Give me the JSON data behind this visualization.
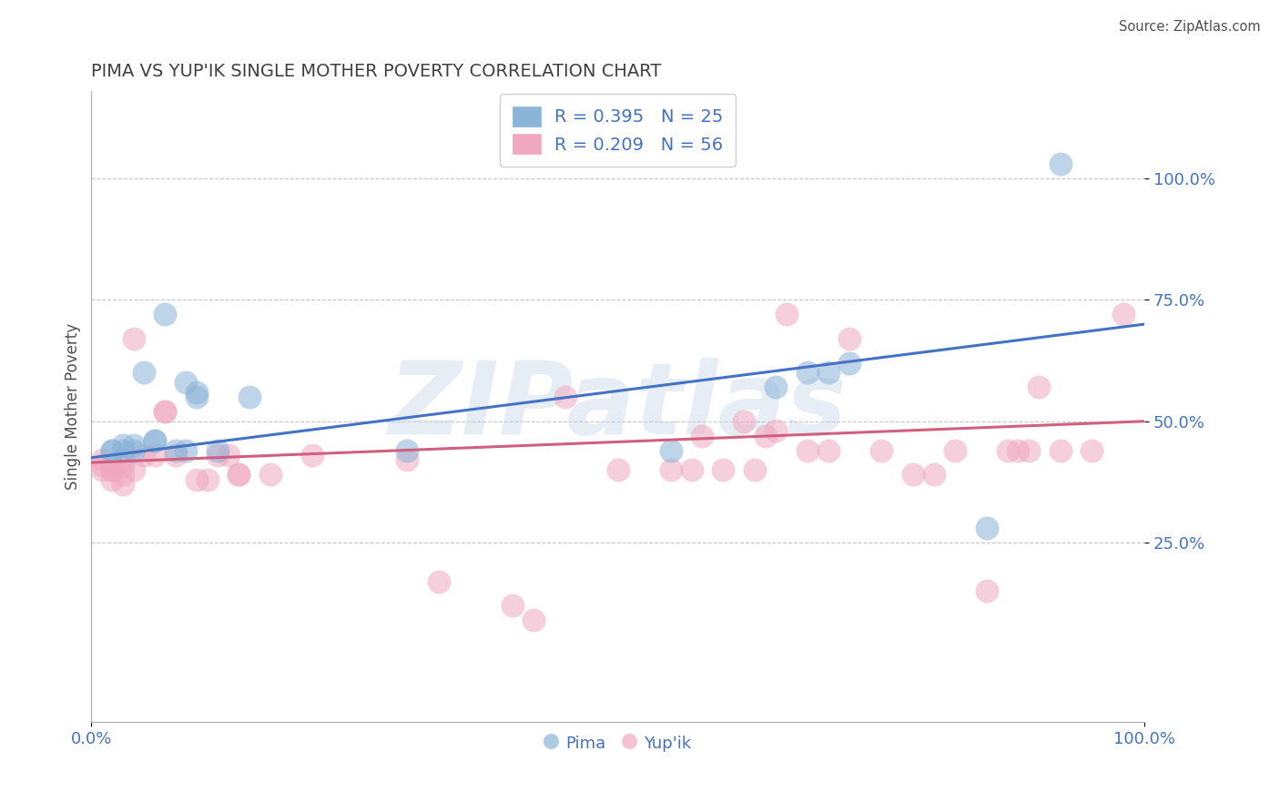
{
  "title": "PIMA VS YUP'IK SINGLE MOTHER POVERTY CORRELATION CHART",
  "source": "Source: ZipAtlas.com",
  "ylabel": "Single Mother Poverty",
  "xlim": [
    0.0,
    1.0
  ],
  "ylim": [
    -0.12,
    1.18
  ],
  "legend_entries": [
    {
      "label": "R = 0.395   N = 25",
      "color": "#a8c8e8"
    },
    {
      "label": "R = 0.209   N = 56",
      "color": "#f4a8c0"
    }
  ],
  "blue_color": "#4472c4",
  "pink_color": "#d06080",
  "blue_marker_color": "#8ab4d8",
  "pink_marker_color": "#f0a8c0",
  "watermark": "ZIPatlas",
  "watermark_color": "#c8d8e8",
  "title_color": "#404040",
  "axis_color": "#4472c4",
  "pima_points": [
    [
      0.02,
      0.44
    ],
    [
      0.02,
      0.44
    ],
    [
      0.03,
      0.44
    ],
    [
      0.03,
      0.45
    ],
    [
      0.04,
      0.45
    ],
    [
      0.04,
      0.44
    ],
    [
      0.05,
      0.6
    ],
    [
      0.06,
      0.46
    ],
    [
      0.06,
      0.46
    ],
    [
      0.07,
      0.72
    ],
    [
      0.08,
      0.44
    ],
    [
      0.09,
      0.44
    ],
    [
      0.09,
      0.58
    ],
    [
      0.1,
      0.55
    ],
    [
      0.1,
      0.56
    ],
    [
      0.12,
      0.44
    ],
    [
      0.15,
      0.55
    ],
    [
      0.3,
      0.44
    ],
    [
      0.55,
      0.44
    ],
    [
      0.65,
      0.57
    ],
    [
      0.68,
      0.6
    ],
    [
      0.7,
      0.6
    ],
    [
      0.72,
      0.62
    ],
    [
      0.85,
      0.28
    ],
    [
      0.92,
      1.03
    ]
  ],
  "yupik_points": [
    [
      0.01,
      0.4
    ],
    [
      0.01,
      0.41
    ],
    [
      0.01,
      0.42
    ],
    [
      0.02,
      0.38
    ],
    [
      0.02,
      0.4
    ],
    [
      0.02,
      0.4
    ],
    [
      0.02,
      0.41
    ],
    [
      0.03,
      0.37
    ],
    [
      0.03,
      0.39
    ],
    [
      0.03,
      0.41
    ],
    [
      0.03,
      0.42
    ],
    [
      0.04,
      0.4
    ],
    [
      0.04,
      0.67
    ],
    [
      0.05,
      0.43
    ],
    [
      0.06,
      0.43
    ],
    [
      0.07,
      0.52
    ],
    [
      0.07,
      0.52
    ],
    [
      0.08,
      0.43
    ],
    [
      0.1,
      0.38
    ],
    [
      0.11,
      0.38
    ],
    [
      0.12,
      0.43
    ],
    [
      0.13,
      0.43
    ],
    [
      0.14,
      0.39
    ],
    [
      0.14,
      0.39
    ],
    [
      0.17,
      0.39
    ],
    [
      0.21,
      0.43
    ],
    [
      0.3,
      0.42
    ],
    [
      0.33,
      0.17
    ],
    [
      0.4,
      0.12
    ],
    [
      0.42,
      0.09
    ],
    [
      0.45,
      0.55
    ],
    [
      0.5,
      0.4
    ],
    [
      0.55,
      0.4
    ],
    [
      0.57,
      0.4
    ],
    [
      0.58,
      0.47
    ],
    [
      0.6,
      0.4
    ],
    [
      0.62,
      0.5
    ],
    [
      0.63,
      0.4
    ],
    [
      0.64,
      0.47
    ],
    [
      0.65,
      0.48
    ],
    [
      0.66,
      0.72
    ],
    [
      0.68,
      0.44
    ],
    [
      0.7,
      0.44
    ],
    [
      0.72,
      0.67
    ],
    [
      0.75,
      0.44
    ],
    [
      0.78,
      0.39
    ],
    [
      0.8,
      0.39
    ],
    [
      0.82,
      0.44
    ],
    [
      0.85,
      0.15
    ],
    [
      0.87,
      0.44
    ],
    [
      0.88,
      0.44
    ],
    [
      0.89,
      0.44
    ],
    [
      0.9,
      0.57
    ],
    [
      0.92,
      0.44
    ],
    [
      0.95,
      0.44
    ],
    [
      0.98,
      0.72
    ]
  ],
  "blue_line": {
    "x0": 0.0,
    "y0": 0.425,
    "x1": 1.0,
    "y1": 0.7
  },
  "pink_line": {
    "x0": 0.0,
    "y0": 0.415,
    "x1": 1.0,
    "y1": 0.5
  },
  "yticks": [
    0.25,
    0.5,
    0.75,
    1.0
  ],
  "ytick_labels": [
    "25.0%",
    "50.0%",
    "75.0%",
    "100.0%"
  ],
  "xticks": [
    0.0,
    1.0
  ],
  "xtick_labels": [
    "0.0%",
    "100.0%"
  ]
}
